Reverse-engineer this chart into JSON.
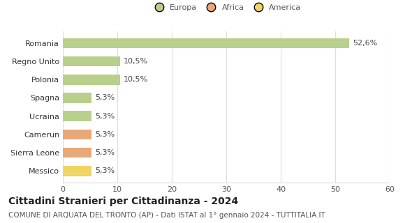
{
  "categories": [
    "Messico",
    "Sierra Leone",
    "Camerun",
    "Ucraina",
    "Spagna",
    "Polonia",
    "Regno Unito",
    "Romania"
  ],
  "values": [
    5.3,
    5.3,
    5.3,
    5.3,
    5.3,
    10.5,
    10.5,
    52.6
  ],
  "labels": [
    "5,3%",
    "5,3%",
    "5,3%",
    "5,3%",
    "5,3%",
    "10,5%",
    "10,5%",
    "52,6%"
  ],
  "colors": [
    "#f0d464",
    "#e8a878",
    "#e8a878",
    "#b8d08c",
    "#b8d08c",
    "#b8d08c",
    "#b8d08c",
    "#b8d08c"
  ],
  "legend": [
    {
      "label": "Europa",
      "color": "#b8d08c"
    },
    {
      "label": "Africa",
      "color": "#e8a878"
    },
    {
      "label": "America",
      "color": "#f0d464"
    }
  ],
  "title": "Cittadini Stranieri per Cittadinanza - 2024",
  "subtitle": "COMUNE DI ARQUATA DEL TRONTO (AP) - Dati ISTAT al 1° gennaio 2024 - TUTTITALIA.IT",
  "xlim": [
    0,
    60
  ],
  "xticks": [
    0,
    10,
    20,
    30,
    40,
    50,
    60
  ],
  "background_color": "#ffffff",
  "grid_color": "#dddddd",
  "title_fontsize": 10,
  "subtitle_fontsize": 7.5,
  "label_fontsize": 8,
  "tick_fontsize": 8
}
